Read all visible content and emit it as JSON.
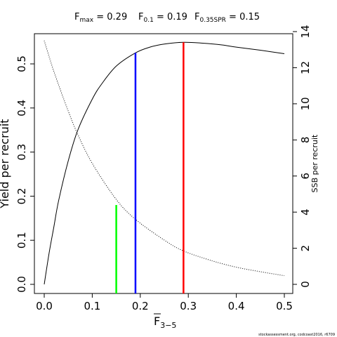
{
  "header": {
    "fmax": {
      "label": "F",
      "sub": "max",
      "eq": " = ",
      "value": "0.29"
    },
    "f01": {
      "label": "F",
      "sub": "0.1",
      "eq": " = ",
      "value": "0.19"
    },
    "f035": {
      "label": "F",
      "sub": "0.35SPR",
      "eq": " = ",
      "value": "0.15"
    }
  },
  "footer": "stockassessment.org, codcoast2016, r6709",
  "chart_data": {
    "type": "line",
    "xlabel_main": "F",
    "xlabel_sub": "3−5",
    "ylabel_left": "Yield per recruit",
    "ylabel_right": "SSB per recruit",
    "xlim": [
      0,
      0.5
    ],
    "ylim_left": [
      0,
      0.55
    ],
    "ylim_right": [
      0,
      14
    ],
    "x_ticks": [
      "0.0",
      "0.1",
      "0.2",
      "0.3",
      "0.4",
      "0.5"
    ],
    "y_left_ticks": [
      "0.0",
      "0.1",
      "0.2",
      "0.3",
      "0.4",
      "0.5"
    ],
    "y_right_ticks": [
      "0",
      "2",
      "4",
      "6",
      "8",
      "10",
      "12",
      "14"
    ],
    "series": [
      {
        "axis": "left",
        "style": "solid",
        "color": "#000000",
        "x": [
          0,
          0.01,
          0.02,
          0.03,
          0.05,
          0.07,
          0.1,
          0.12,
          0.15,
          0.19,
          0.22,
          0.25,
          0.29,
          0.33,
          0.37,
          0.4,
          0.45,
          0.5
        ],
        "y": [
          0,
          0.07,
          0.13,
          0.19,
          0.28,
          0.35,
          0.42,
          0.455,
          0.495,
          0.525,
          0.538,
          0.545,
          0.549,
          0.547,
          0.543,
          0.538,
          0.531,
          0.523
        ]
      },
      {
        "axis": "right",
        "style": "dotted",
        "color": "#000000",
        "x": [
          0,
          0.02,
          0.05,
          0.07,
          0.1,
          0.15,
          0.19,
          0.25,
          0.29,
          0.35,
          0.4,
          0.45,
          0.5
        ],
        "y": [
          13.5,
          11.8,
          9.6,
          8.3,
          6.7,
          4.7,
          3.6,
          2.45,
          1.85,
          1.3,
          0.95,
          0.7,
          0.48
        ]
      }
    ],
    "reference_lines": [
      {
        "name": "F0.35SPR",
        "x": 0.15,
        "y_left": 0.18,
        "color": "#00ff00"
      },
      {
        "name": "F0.1",
        "x": 0.19,
        "y_left": 0.525,
        "color": "#0000ff"
      },
      {
        "name": "Fmax",
        "x": 0.29,
        "y_left": 0.549,
        "color": "#ff0000"
      }
    ]
  }
}
